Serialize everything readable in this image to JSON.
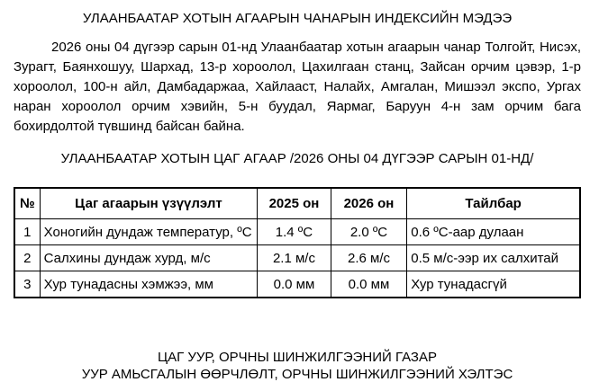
{
  "document": {
    "title": "УЛААНБААТАР ХОТЫН АГААРЫН ЧАНАРЫН ИНДЕКСИЙН МЭДЭЭ",
    "paragraph": "2026 оны 04 дүгээр сарын 01-нд Улаанбаатар хотын агаарын чанар Толгойт, Нисэх, Зурагт, Баянхошуу, Шархад, 13-р хороолол, Цахилгаан станц, Зайсан орчим цэвэр, 1-р хороолол, 100-н айл, Дамбадаржаа, Хайлааст, Налайх, Амгалан, Мишээл экспо, Ургах наран хороолол орчим хэвийн, 5-н буудал, Яармаг, Баруун 4-н зам орчим бага бохирдолтой түвшинд байсан байна.",
    "subtitle": "УЛААНБААТАР ХОТЫН ЦАГ АГААР /2026 ОНЫ 04 ДҮГЭЭР САРЫН 01-НД/",
    "footer_line1": "ЦАГ УУР, ОРЧНЫ ШИНЖИЛГЭЭНИЙ ГАЗАР",
    "footer_line2": "УУР АМЬСГАЛЫН ӨӨРЧЛӨЛТ, ОРЧНЫ ШИНЖИЛГЭЭНИЙ ХЭЛТЭС"
  },
  "table": {
    "headers": [
      "№",
      "Цаг агаарын үзүүлэлт",
      "2025 он",
      "2026 он",
      "Тайлбар"
    ],
    "rows": [
      [
        "1",
        "Хоногийн дундаж температур, ºС",
        "1.4 ºС",
        "2.0 ºС",
        "0.6 ºС-аар дулаан"
      ],
      [
        "2",
        "Салхины дундаж хурд, м/с",
        "2.1 м/с",
        "2.6 м/с",
        "0.5 м/с-ээр их салхитай"
      ],
      [
        "3",
        "Хур тунадасны хэмжээ, мм",
        "0.0 мм",
        "0.0 мм",
        "Хур тунадасгүй"
      ]
    ]
  }
}
